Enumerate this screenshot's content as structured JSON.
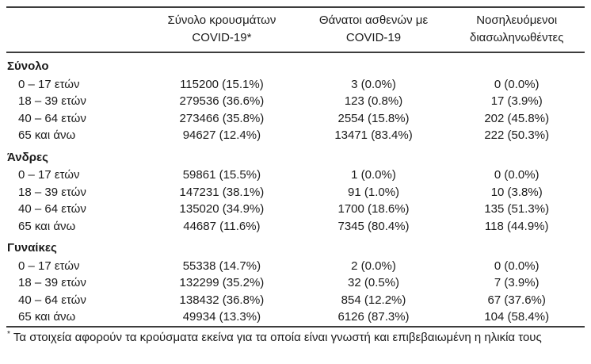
{
  "headers": [
    {
      "line1": "Σύνολο κρουσμάτων",
      "line2": "COVID-19*"
    },
    {
      "line1": "Θάνατοι ασθενών με",
      "line2": "COVID-19"
    },
    {
      "line1": "Νοσηλευόμενοι",
      "line2": "διασωληνωθέντες"
    }
  ],
  "sections": [
    {
      "label": "Σύνολο",
      "rows": [
        {
          "label": "0 – 17 ετών",
          "cases": "115200 (15.1%)",
          "deaths": "3 (0.0%)",
          "intubated": "0 (0.0%)"
        },
        {
          "label": "18 – 39 ετών",
          "cases": "279536 (36.6%)",
          "deaths": "123 (0.8%)",
          "intubated": "17 (3.9%)"
        },
        {
          "label": "40 – 64 ετών",
          "cases": "273466 (35.8%)",
          "deaths": "2554 (15.8%)",
          "intubated": "202 (45.8%)"
        },
        {
          "label": "65 και άνω",
          "cases": "94627 (12.4%)",
          "deaths": "13471 (83.4%)",
          "intubated": "222 (50.3%)"
        }
      ]
    },
    {
      "label": "Άνδρες",
      "rows": [
        {
          "label": "0 – 17 ετών",
          "cases": "59861 (15.5%)",
          "deaths": "1 (0.0%)",
          "intubated": "0 (0.0%)"
        },
        {
          "label": "18 – 39 ετών",
          "cases": "147231 (38.1%)",
          "deaths": "91 (1.0%)",
          "intubated": "10 (3.8%)"
        },
        {
          "label": "40 – 64 ετών",
          "cases": "135020 (34.9%)",
          "deaths": "1700 (18.6%)",
          "intubated": "135 (51.3%)"
        },
        {
          "label": "65 και άνω",
          "cases": "44687 (11.6%)",
          "deaths": "7345 (80.4%)",
          "intubated": "118 (44.9%)"
        }
      ]
    },
    {
      "label": "Γυναίκες",
      "rows": [
        {
          "label": "0 – 17 ετών",
          "cases": "55338 (14.7%)",
          "deaths": "2 (0.0%)",
          "intubated": "0 (0.0%)"
        },
        {
          "label": "18 – 39 ετών",
          "cases": "132299 (35.2%)",
          "deaths": "32 (0.5%)",
          "intubated": "7 (3.9%)"
        },
        {
          "label": "40 – 64 ετών",
          "cases": "138432 (36.8%)",
          "deaths": "854 (12.2%)",
          "intubated": "67 (37.6%)"
        },
        {
          "label": "65 και άνω",
          "cases": "49934 (13.3%)",
          "deaths": "6126 (87.3%)",
          "intubated": "104 (58.4%)"
        }
      ]
    }
  ],
  "footnote": {
    "marker": "*",
    "text": "Τα στοιχεία αφορούν τα κρούσματα εκείνα για τα οποία είναι γνωστή και επιβεβαιωμένη η ηλικία τους"
  },
  "colors": {
    "text": "#1b1b1b",
    "rule": "#3d3d3d",
    "background": "#ffffff"
  }
}
